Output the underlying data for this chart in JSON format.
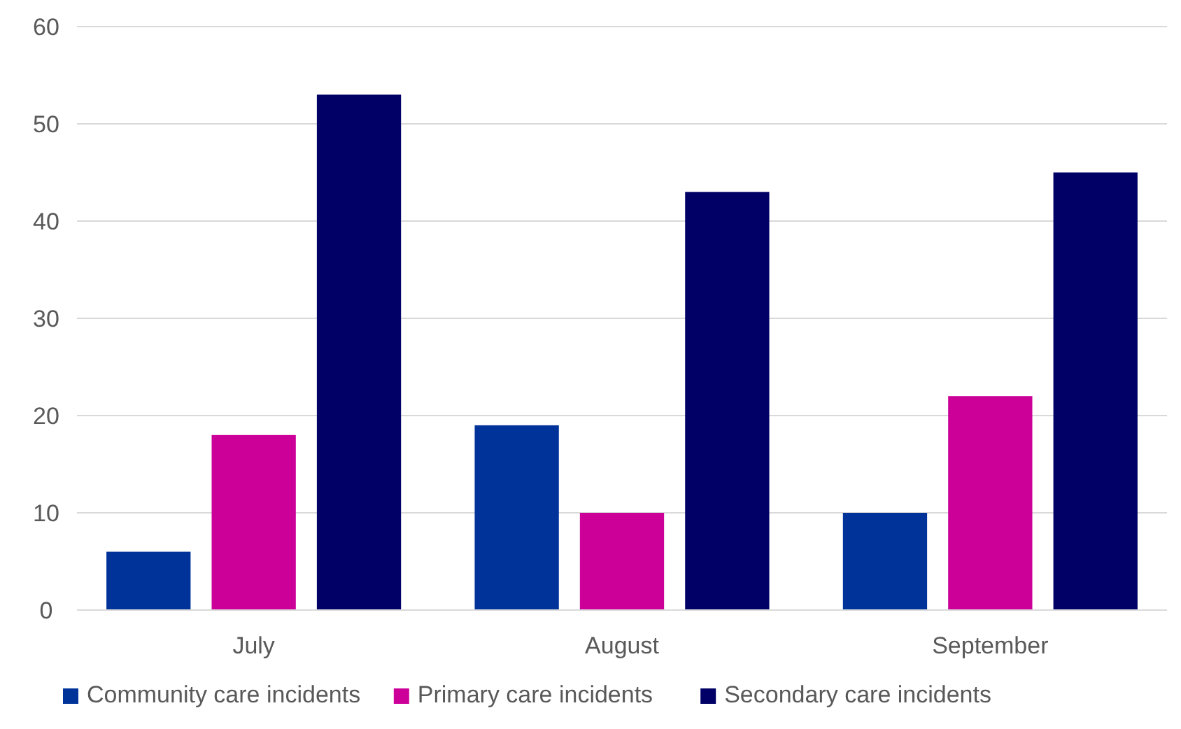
{
  "chart_data": {
    "type": "bar",
    "categories": [
      "July",
      "August",
      "September"
    ],
    "series": [
      {
        "name": "Community care incidents",
        "color": "#003399",
        "values": [
          6,
          19,
          10
        ]
      },
      {
        "name": "Primary care incidents",
        "color": "#cc0099",
        "values": [
          18,
          10,
          22
        ]
      },
      {
        "name": "Secondary care incidents",
        "color": "#000066",
        "values": [
          53,
          43,
          45
        ]
      }
    ],
    "ylim": [
      0,
      60
    ],
    "yticks": [
      0,
      10,
      20,
      30,
      40,
      50,
      60
    ],
    "grid": "y",
    "legend": "bottom"
  }
}
